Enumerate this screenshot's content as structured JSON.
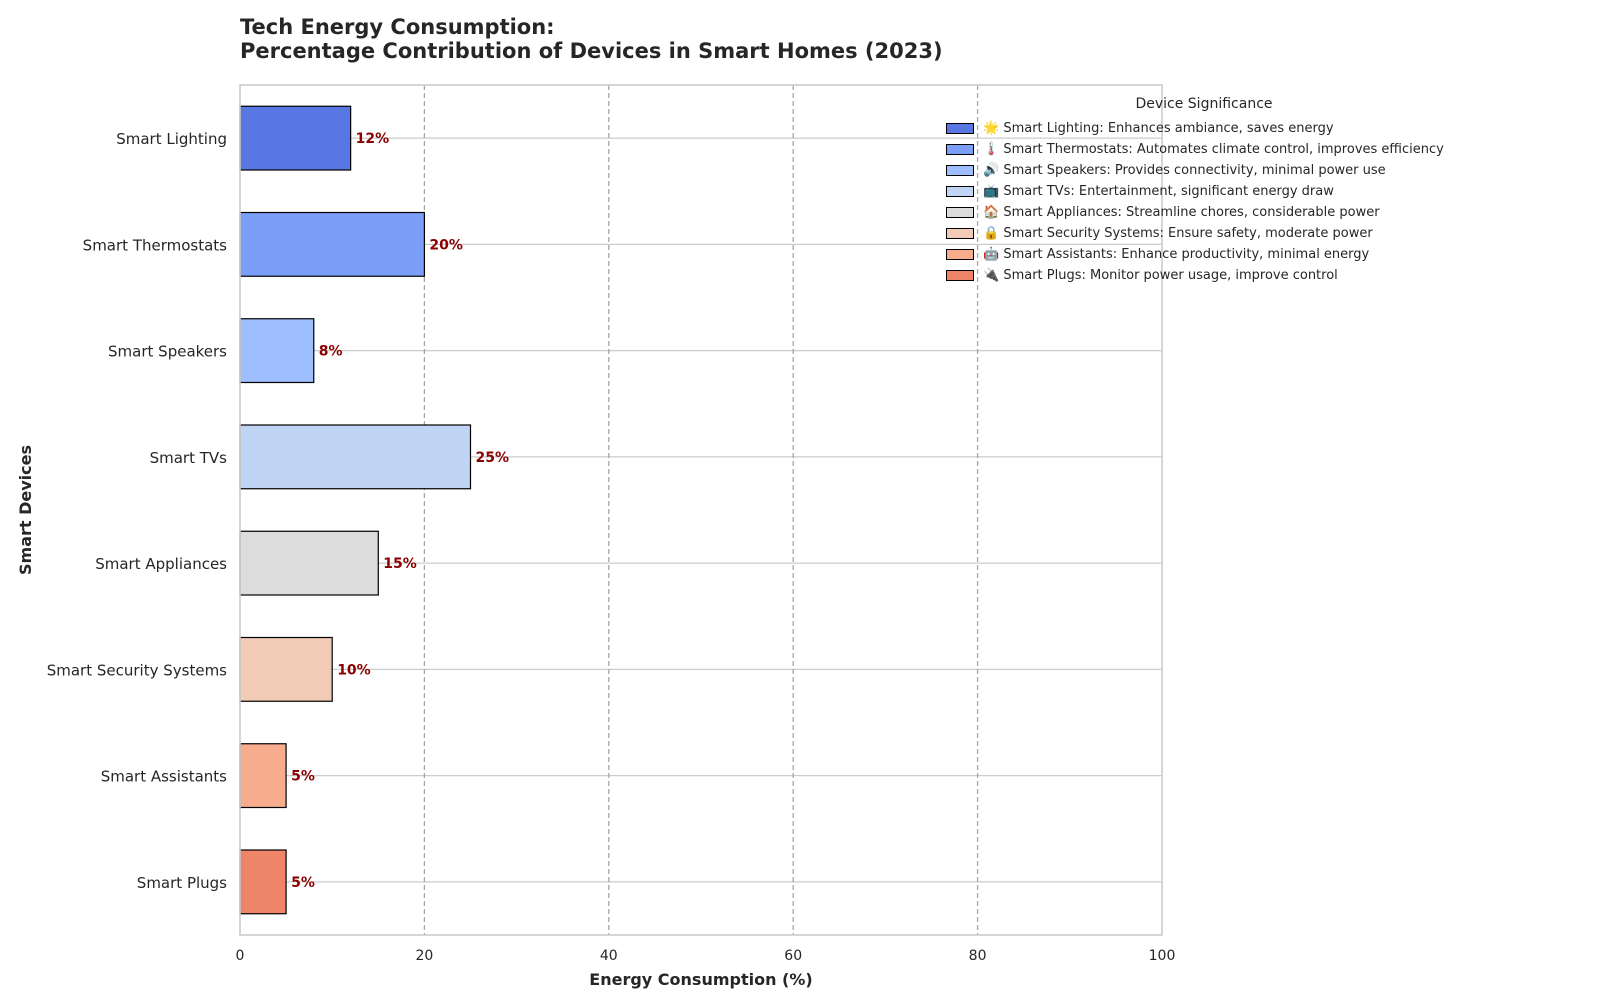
{
  "chart_data": {
    "type": "bar",
    "orientation": "horizontal",
    "title": "Tech Energy Consumption:",
    "subtitle": "Percentage Contribution of Devices in Smart Homes (2023)",
    "xlabel": "Energy Consumption (%)",
    "ylabel": "Smart Devices",
    "xlim": [
      0,
      100
    ],
    "xticks": [
      "0",
      "20",
      "40",
      "60",
      "80",
      "100"
    ],
    "grid": true,
    "categories": [
      "Smart Lighting",
      "Smart Thermostats",
      "Smart Speakers",
      "Smart TVs",
      "Smart Appliances",
      "Smart Security Systems",
      "Smart Assistants",
      "Smart Plugs"
    ],
    "values": [
      12,
      20,
      8,
      25,
      15,
      10,
      5,
      5
    ],
    "value_labels": [
      "12%",
      "20%",
      "8%",
      "25%",
      "15%",
      "10%",
      "5%",
      "5%"
    ],
    "colors": [
      "#5977e3",
      "#7b9ff9",
      "#9ebeff",
      "#c0d4f5",
      "#dddcdc",
      "#f2cbb7",
      "#f7ac8e",
      "#ee8468"
    ],
    "label_color": "#8b0000",
    "legend": {
      "title": "Device Significance",
      "position": "top-right",
      "entries": [
        "🌟 Smart Lighting: Enhances ambiance, saves energy",
        "🌡️ Smart Thermostats: Automates climate control, improves efficiency",
        "🔊 Smart Speakers: Provides connectivity, minimal power use",
        "📺 Smart TVs: Entertainment, significant energy draw",
        "🏠 Smart Appliances: Streamline chores, considerable power",
        "🔒 Smart Security Systems: Ensure safety, moderate power",
        "🤖 Smart Assistants: Enhance productivity, minimal energy",
        "🔌 Smart Plugs: Monitor power usage, improve control"
      ]
    }
  }
}
